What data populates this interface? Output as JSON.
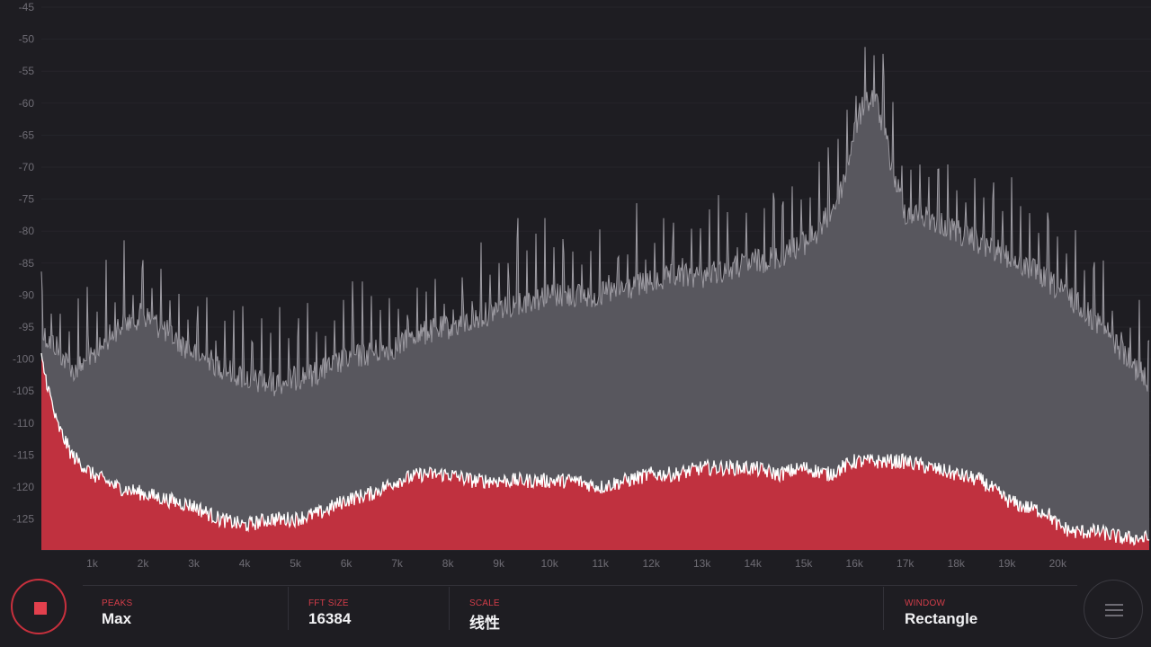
{
  "colors": {
    "background": "#1e1d22",
    "peak_fill": "#58575e",
    "peak_line": "#9d9ba2",
    "current_fill": "#c0313f",
    "current_line": "#ffffff",
    "accent": "#d23d49"
  },
  "y_axis": {
    "labels": [
      "-45",
      "-50",
      "-55",
      "-60",
      "-65",
      "-70",
      "-75",
      "-80",
      "-85",
      "-90",
      "-95",
      "-100",
      "-105",
      "-110",
      "-115",
      "-120",
      "-125"
    ]
  },
  "x_axis": {
    "labels": [
      "1k",
      "2k",
      "3k",
      "4k",
      "5k",
      "6k",
      "7k",
      "8k",
      "9k",
      "10k",
      "11k",
      "12k",
      "13k",
      "14k",
      "15k",
      "16k",
      "17k",
      "18k",
      "19k",
      "20k"
    ]
  },
  "chart_data": {
    "type": "area",
    "x_unit": "Hz",
    "ylim": [
      -130,
      -45
    ],
    "xlim": [
      0,
      21800
    ],
    "series": [
      {
        "x": [
          0,
          300,
          600,
          1000,
          1500,
          2000,
          2500,
          3000,
          3500,
          4000,
          4500,
          5000,
          5500,
          6000,
          6500,
          7000,
          7500,
          8000,
          8500,
          9000,
          9500,
          10000,
          10500,
          11000,
          11500,
          12000,
          12500,
          13000,
          13500,
          14000,
          14500,
          15000,
          15300,
          15600,
          15800,
          16000,
          16200,
          16400,
          16600,
          16800,
          17000,
          17500,
          18000,
          18500,
          19000,
          19500,
          20000,
          20500,
          21000,
          21500,
          21800
        ],
        "y": [
          -94,
          -96,
          -100,
          -98,
          -93,
          -91,
          -94,
          -97,
          -99,
          -101,
          -102,
          -101,
          -100,
          -98,
          -97,
          -96,
          -94,
          -93,
          -92,
          -90,
          -89,
          -88,
          -88,
          -88,
          -87,
          -86,
          -85,
          -85,
          -84,
          -83,
          -82,
          -80,
          -78,
          -74,
          -70,
          -62,
          -58,
          -57,
          -63,
          -70,
          -75,
          -76,
          -78,
          -80,
          -82,
          -84,
          -87,
          -90,
          -94,
          -99,
          -102
        ]
      },
      {
        "x": [
          0,
          150,
          300,
          600,
          1000,
          1500,
          2000,
          2500,
          3000,
          3500,
          4000,
          4500,
          5000,
          5500,
          6000,
          6500,
          7000,
          7500,
          8000,
          8500,
          9000,
          9500,
          10000,
          10500,
          11000,
          11500,
          12000,
          12500,
          13000,
          13500,
          14000,
          14500,
          15000,
          15500,
          16000,
          16500,
          17000,
          17500,
          18000,
          18500,
          19000,
          19300,
          19800,
          20000,
          20300,
          20800,
          21300,
          21800
        ],
        "y": [
          -100,
          -105,
          -110,
          -115,
          -118,
          -120,
          -121,
          -122,
          -123,
          -125,
          -126,
          -125,
          -125,
          -124,
          -122,
          -121,
          -119,
          -118,
          -118,
          -119,
          -119,
          -119,
          -119,
          -119,
          -120,
          -119,
          -118,
          -118,
          -117,
          -117,
          -117,
          -118,
          -117,
          -118,
          -116,
          -116,
          -116,
          -117,
          -118,
          -119,
          -122,
          -123,
          -124,
          -126,
          -127,
          -127,
          -128,
          -128
        ]
      }
    ]
  },
  "settings": [
    {
      "label": "PEAKS",
      "value": "Max"
    },
    {
      "label": "FFT SIZE",
      "value": "16384"
    },
    {
      "label": "SCALE",
      "value": "线性"
    },
    {
      "label": "WINDOW",
      "value": "Rectangle"
    }
  ],
  "icons": {
    "stop": "stop-icon",
    "menu": "hamburger-menu-icon"
  }
}
